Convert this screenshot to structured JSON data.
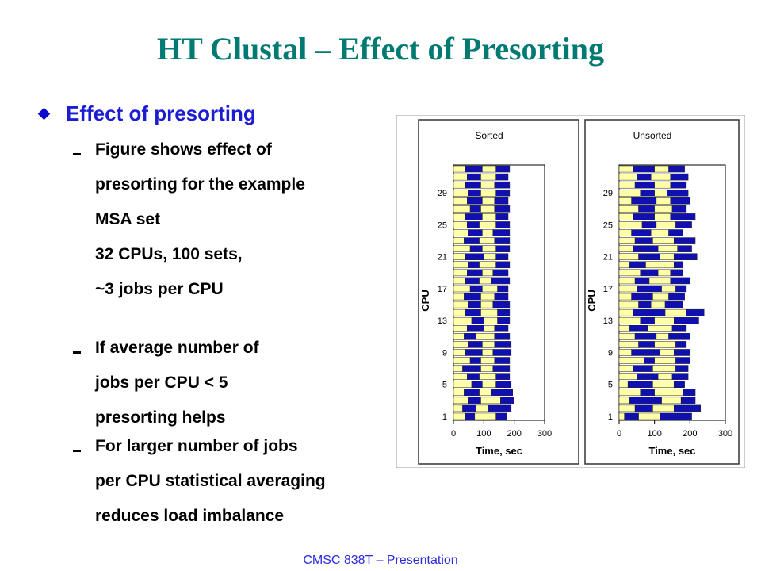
{
  "slide": {
    "title": "HT Clustal – Effect of Presorting",
    "bullet": "Effect of presorting",
    "sub1_lines": [
      "Figure shows effect of",
      "presorting for the example",
      "MSA set",
      "32 CPUs, 100 sets,",
      "~3 jobs per CPU"
    ],
    "sub2_lines": [
      "If average number of",
      "jobs per CPU < 5",
      "presorting helps"
    ],
    "sub3_lines": [
      "For larger number of jobs",
      "per CPU statistical averaging",
      "reduces load imbalance"
    ],
    "footer": "CMSC 838T – Presentation"
  },
  "colors": {
    "title": "#007a73",
    "bullet": "#1c1cd2",
    "bar_yellow": "#ffffa8",
    "bar_blue": "#1010b0"
  },
  "chart_data": [
    {
      "type": "bar",
      "orientation": "horizontal-stacked",
      "title": "Sorted",
      "xlabel": "Time, sec",
      "ylabel": "CPU",
      "xlim": [
        0,
        300
      ],
      "xticks": [
        "0",
        "100",
        "200",
        "300"
      ],
      "yticks": [
        "1",
        "5",
        "9",
        "13",
        "17",
        "21",
        "25",
        "29"
      ],
      "segments_per_cpu": [
        [
          40,
          30,
          70,
          35
        ],
        [
          30,
          45,
          40,
          75
        ],
        [
          50,
          40,
          65,
          45
        ],
        [
          35,
          50,
          40,
          70
        ],
        [
          60,
          35,
          45,
          50
        ],
        [
          45,
          40,
          55,
          45
        ],
        [
          30,
          60,
          40,
          55
        ],
        [
          55,
          35,
          45,
          50
        ],
        [
          40,
          55,
          35,
          60
        ],
        [
          50,
          45,
          40,
          55
        ],
        [
          35,
          40,
          60,
          50
        ],
        [
          45,
          55,
          35,
          45
        ],
        [
          60,
          40,
          45,
          40
        ],
        [
          40,
          50,
          55,
          40
        ],
        [
          50,
          40,
          40,
          55
        ],
        [
          35,
          55,
          45,
          45
        ],
        [
          55,
          40,
          50,
          35
        ],
        [
          40,
          45,
          40,
          60
        ],
        [
          45,
          50,
          35,
          50
        ],
        [
          50,
          35,
          55,
          45
        ],
        [
          40,
          60,
          40,
          40
        ],
        [
          55,
          40,
          45,
          45
        ],
        [
          35,
          50,
          50,
          50
        ],
        [
          50,
          45,
          35,
          55
        ],
        [
          45,
          40,
          55,
          45
        ],
        [
          40,
          55,
          45,
          40
        ],
        [
          55,
          35,
          45,
          50
        ],
        [
          45,
          50,
          40,
          45
        ],
        [
          50,
          40,
          50,
          45
        ],
        [
          40,
          50,
          45,
          50
        ],
        [
          45,
          45,
          50,
          40
        ],
        [
          40,
          55,
          45,
          45
        ]
      ]
    },
    {
      "type": "bar",
      "orientation": "horizontal-stacked",
      "title": "Unsorted",
      "xlabel": "Time, sec",
      "ylabel": "CPU",
      "xlim": [
        0,
        300
      ],
      "xticks": [
        "0",
        "100",
        "200",
        "300"
      ],
      "yticks": [
        "1",
        "5",
        "9",
        "13",
        "17",
        "21",
        "25",
        "29"
      ],
      "segments_per_cpu": [
        [
          15,
          40,
          60,
          90
        ],
        [
          45,
          50,
          60,
          75
        ],
        [
          30,
          90,
          55,
          40
        ],
        [
          60,
          40,
          80,
          35
        ],
        [
          25,
          70,
          60,
          30
        ],
        [
          50,
          60,
          40,
          45
        ],
        [
          40,
          55,
          65,
          35
        ],
        [
          70,
          30,
          60,
          40
        ],
        [
          35,
          80,
          40,
          45
        ],
        [
          55,
          45,
          60,
          30
        ],
        [
          45,
          60,
          35,
          60
        ],
        [
          30,
          50,
          70,
          40
        ],
        [
          60,
          40,
          55,
          70
        ],
        [
          40,
          90,
          60,
          50
        ],
        [
          55,
          35,
          40,
          50
        ],
        [
          35,
          60,
          45,
          45
        ],
        [
          50,
          70,
          40,
          30
        ],
        [
          45,
          40,
          60,
          55
        ],
        [
          60,
          50,
          35,
          35
        ],
        [
          30,
          45,
          80,
          25
        ],
        [
          55,
          60,
          40,
          65
        ],
        [
          40,
          70,
          55,
          40
        ],
        [
          45,
          50,
          60,
          60
        ],
        [
          35,
          55,
          50,
          40
        ],
        [
          65,
          40,
          55,
          45
        ],
        [
          40,
          60,
          45,
          70
        ],
        [
          55,
          45,
          50,
          40
        ],
        [
          35,
          70,
          40,
          55
        ],
        [
          60,
          40,
          35,
          60
        ],
        [
          45,
          55,
          45,
          45
        ],
        [
          50,
          40,
          55,
          50
        ],
        [
          40,
          60,
          40,
          45
        ]
      ]
    }
  ]
}
